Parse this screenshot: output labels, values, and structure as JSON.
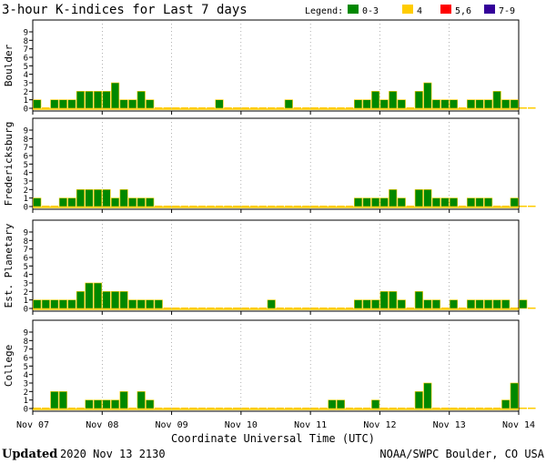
{
  "title": "3-hour K-indices for Last 7 days",
  "legend": {
    "label": "Legend:",
    "items": [
      {
        "label": "0-3",
        "color": "#008800"
      },
      {
        "label": "4",
        "color": "#ffcc00"
      },
      {
        "label": "5,6",
        "color": "#ff0000"
      },
      {
        "label": "7-9",
        "color": "#330099"
      }
    ]
  },
  "xlabel": "Coordinate Universal Time (UTC)",
  "footer": {
    "updated_label": "Updated",
    "updated_value": "2020 Nov 13 2130",
    "source": "NOAA/SWPC Boulder, CO USA"
  },
  "chart_data": {
    "type": "bar",
    "x_ticks": [
      "Nov 07",
      "Nov 08",
      "Nov 09",
      "Nov 10",
      "Nov 11",
      "Nov 12",
      "Nov 13",
      "Nov 14"
    ],
    "y_ticks": [
      "0",
      "1",
      "2",
      "3",
      "4",
      "5",
      "6",
      "7",
      "8",
      "9"
    ],
    "ylim": [
      0,
      9
    ],
    "series": [
      {
        "name": "Boulder",
        "values": [
          1,
          0,
          1,
          1,
          1,
          2,
          2,
          2,
          2,
          3,
          1,
          1,
          2,
          1,
          0,
          0,
          0,
          0,
          0,
          0,
          0,
          1,
          0,
          0,
          0,
          0,
          0,
          0,
          0,
          1,
          0,
          0,
          0,
          0,
          0,
          0,
          0,
          1,
          1,
          2,
          1,
          2,
          1,
          0,
          2,
          3,
          1,
          1,
          1,
          0,
          1,
          1,
          1,
          2,
          1,
          1,
          0,
          0
        ]
      },
      {
        "name": "Fredericksburg",
        "values": [
          1,
          0,
          0,
          1,
          1,
          2,
          2,
          2,
          2,
          1,
          2,
          1,
          1,
          1,
          0,
          0,
          0,
          0,
          0,
          0,
          0,
          0,
          0,
          0,
          0,
          0,
          0,
          0,
          0,
          0,
          0,
          0,
          0,
          0,
          0,
          0,
          0,
          1,
          1,
          1,
          1,
          2,
          1,
          0,
          2,
          2,
          1,
          1,
          1,
          0,
          1,
          1,
          1,
          0,
          0,
          1,
          0,
          0
        ]
      },
      {
        "name": "Est. Planetary",
        "values": [
          1,
          1,
          1,
          1,
          1,
          2,
          3,
          3,
          2,
          2,
          2,
          1,
          1,
          1,
          1,
          0,
          0,
          0,
          0,
          0,
          0,
          0,
          0,
          0,
          0,
          0,
          0,
          1,
          0,
          0,
          0,
          0,
          0,
          0,
          0,
          0,
          0,
          1,
          1,
          1,
          2,
          2,
          1,
          0,
          2,
          1,
          1,
          0,
          1,
          0,
          1,
          1,
          1,
          1,
          1,
          0,
          1,
          0
        ]
      },
      {
        "name": "College",
        "values": [
          0,
          0,
          2,
          2,
          0,
          0,
          1,
          1,
          1,
          1,
          2,
          0,
          2,
          1,
          0,
          0,
          0,
          0,
          0,
          0,
          0,
          0,
          0,
          0,
          0,
          0,
          0,
          0,
          0,
          0,
          0,
          0,
          0,
          0,
          1,
          1,
          0,
          0,
          0,
          1,
          0,
          0,
          0,
          0,
          2,
          3,
          0,
          0,
          0,
          0,
          0,
          0,
          0,
          0,
          1,
          3,
          0,
          0
        ]
      }
    ]
  }
}
